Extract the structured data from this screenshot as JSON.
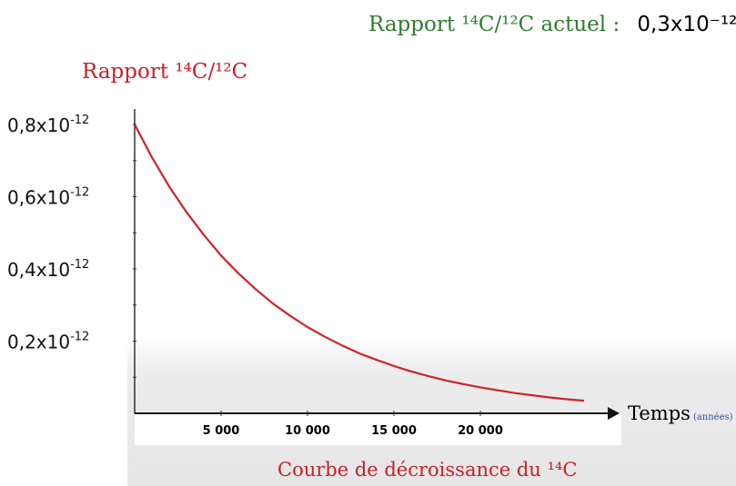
{
  "header": {
    "current_ratio_label": "Rapport ¹⁴C/¹²C actuel :",
    "current_ratio_value": "0,3x10⁻¹²"
  },
  "chart_data": {
    "type": "line",
    "title": "Courbe de décroissance du ¹⁴C",
    "ylabel": "Rapport ¹⁴C/¹²C",
    "xlabel": "Temps",
    "xlabel_unit": "(années)",
    "x_ticks": [
      {
        "value": 5000,
        "label": "5 000"
      },
      {
        "value": 10000,
        "label": "10 000"
      },
      {
        "value": 15000,
        "label": "15 000"
      },
      {
        "value": 20000,
        "label": "20 000"
      }
    ],
    "y_ticks": [
      {
        "value": 0.8,
        "label": "0,8x10⁻¹²"
      },
      {
        "value": 0.6,
        "label": "0,6x10⁻¹²"
      },
      {
        "value": 0.4,
        "label": "0,4x10⁻¹²"
      },
      {
        "value": 0.2,
        "label": "0,2x10⁻¹²"
      }
    ],
    "y_unit_multiplier": "10⁻¹²",
    "xlim": [
      0,
      30000
    ],
    "ylim": [
      0,
      0.8
    ],
    "series": [
      {
        "x": [
          0,
          1000,
          2000,
          3000,
          4000,
          5000,
          6000,
          7000,
          8000,
          9000,
          10000,
          11000,
          12000,
          13000,
          14000,
          15000,
          16000,
          17000,
          18000,
          19000,
          20000,
          21000,
          22000,
          23000,
          24000,
          25000,
          26000
        ],
        "y": [
          0.8,
          0.709,
          0.628,
          0.557,
          0.494,
          0.437,
          0.388,
          0.344,
          0.304,
          0.27,
          0.239,
          0.212,
          0.188,
          0.166,
          0.148,
          0.131,
          0.116,
          0.103,
          0.091,
          0.081,
          0.072,
          0.064,
          0.056,
          0.05,
          0.044,
          0.039,
          0.035
        ]
      }
    ],
    "colors": {
      "curve": "#d0222b",
      "axis": "#333333",
      "ylabel": "#c8202a",
      "current_ratio_label": "#2e7d2e",
      "unit": "#2c4fa0"
    }
  }
}
